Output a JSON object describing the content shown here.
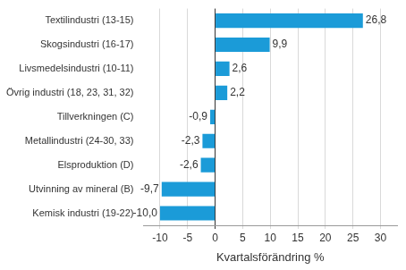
{
  "chart_data": {
    "type": "bar",
    "orientation": "horizontal",
    "x_label": "Kvartalsförändring %",
    "categories": [
      "Textilindustri (13-15)",
      "Skogsindustri (16-17)",
      "Livsmedelsindustri (10-11)",
      "Övrig industri (18, 23, 31, 32)",
      "Tillverkningen (C)",
      "Metallindustri (24-30, 33)",
      "Elsproduktion (D)",
      "Utvinning av mineral (B)",
      "Kemisk industri (19-22)"
    ],
    "values": [
      26.8,
      9.9,
      2.6,
      2.2,
      -0.9,
      -2.3,
      -2.6,
      -9.7,
      -10.0
    ],
    "value_labels": [
      "26,8",
      "9,9",
      "2,6",
      "2,2",
      "-0,9",
      "-2,3",
      "-2,6",
      "-9,7",
      "-10,0"
    ],
    "data_labels": true,
    "color": "#1b9bd8",
    "xlim": [
      -13,
      33
    ],
    "xticks": [
      -10,
      -5,
      0,
      5,
      10,
      15,
      20,
      25,
      30
    ],
    "grid": true
  }
}
